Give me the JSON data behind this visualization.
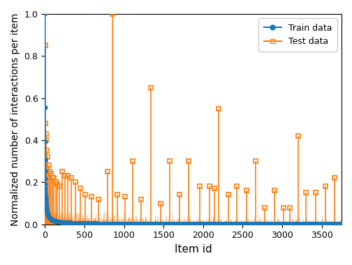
{
  "title": "",
  "xlabel": "Item id",
  "ylabel": "Normalized number of interactions per item",
  "xlim": [
    0,
    3750
  ],
  "ylim": [
    0,
    1.0
  ],
  "train_color": "#1f77b4",
  "test_color": "#ff7f0e",
  "train_label": "Train data",
  "test_label": "Test data",
  "n_total": 3750,
  "power_law_exp": 0.85,
  "test_spike_positions": [
    3,
    8,
    12,
    18,
    25,
    35,
    48,
    62,
    78,
    95,
    112,
    135,
    160,
    185,
    215,
    250,
    290,
    335,
    385,
    445,
    510,
    590,
    680,
    790,
    850,
    920,
    1010,
    1110,
    1220,
    1340,
    1460,
    1580,
    1700,
    1820,
    1960,
    2080,
    2200,
    2140,
    2320,
    2430,
    2550,
    2660,
    2780,
    2900,
    3020,
    3100,
    3200,
    3300,
    3420,
    3550,
    3660
  ],
  "test_spike_heights": [
    0.85,
    0.48,
    0.43,
    0.4,
    0.35,
    0.32,
    0.28,
    0.25,
    0.24,
    0.22,
    0.22,
    0.2,
    0.19,
    0.18,
    0.25,
    0.23,
    0.23,
    0.22,
    0.2,
    0.17,
    0.14,
    0.13,
    0.12,
    0.25,
    1.0,
    0.14,
    0.13,
    0.3,
    0.12,
    0.65,
    0.1,
    0.3,
    0.14,
    0.3,
    0.18,
    0.18,
    0.55,
    0.17,
    0.14,
    0.18,
    0.16,
    0.3,
    0.08,
    0.16,
    0.08,
    0.08,
    0.42,
    0.15,
    0.15,
    0.18,
    0.22
  ],
  "bg_seed": 42,
  "n_test_bg": 3700,
  "bg_max": 0.06,
  "figsize": [
    5.04,
    3.8
  ],
  "dpi": 100
}
